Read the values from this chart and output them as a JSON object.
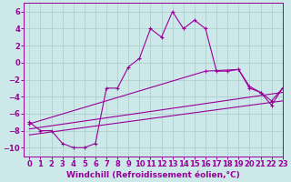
{
  "background_color": "#cce8e8",
  "grid_color": "#aacccc",
  "line_color": "#990099",
  "xlim": [
    -0.5,
    23
  ],
  "ylim": [
    -11,
    7
  ],
  "xlabel": "Windchill (Refroidissement éolien,°C)",
  "xlabel_fontsize": 6.5,
  "xticks": [
    0,
    1,
    2,
    3,
    4,
    5,
    6,
    7,
    8,
    9,
    10,
    11,
    12,
    13,
    14,
    15,
    16,
    17,
    18,
    19,
    20,
    21,
    22,
    23
  ],
  "yticks": [
    -10,
    -8,
    -6,
    -4,
    -2,
    0,
    2,
    4,
    6
  ],
  "tick_fontsize": 6.0,
  "line1_x": [
    0,
    1,
    2,
    3,
    4,
    5,
    6,
    7,
    8,
    9,
    10,
    11,
    12,
    13,
    14,
    15,
    16,
    17,
    18,
    19,
    20,
    21,
    22,
    23
  ],
  "line1_y": [
    -7,
    -8,
    -8,
    -9.5,
    -10,
    -10,
    -9.5,
    -3,
    -3,
    -0.5,
    0.5,
    4,
    3,
    6,
    4,
    5,
    4,
    -1,
    -1,
    -0.8,
    -3,
    -3.5,
    -5,
    -3
  ],
  "line2_x": [
    0,
    16,
    19,
    20,
    21,
    22,
    23
  ],
  "line2_y": [
    -7.2,
    -1.0,
    -0.8,
    -2.8,
    -3.5,
    -4.5,
    -3.0
  ],
  "line3_x": [
    0,
    23
  ],
  "line3_y": [
    -7.8,
    -3.5
  ],
  "line4_x": [
    0,
    23
  ],
  "line4_y": [
    -8.5,
    -4.5
  ]
}
